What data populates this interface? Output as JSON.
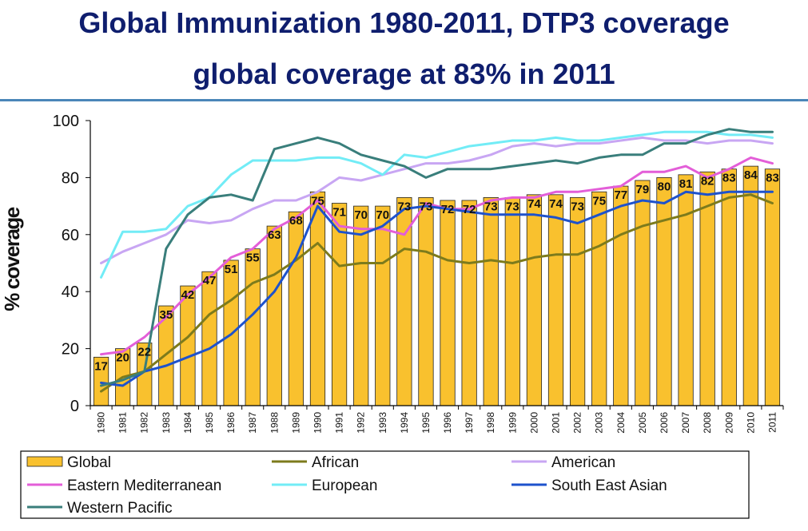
{
  "title": "Global Immunization 1980-2011, DTP3 coverage",
  "subtitle": "global coverage at 83% in 2011",
  "chart_data": {
    "type": "bar",
    "ylabel": "% coverage",
    "xlabel": "",
    "ylim": [
      0,
      100
    ],
    "yticks": [
      0,
      20,
      40,
      60,
      80,
      100
    ],
    "grid": false,
    "legend_position": "bottom",
    "categories": [
      "1980",
      "1981",
      "1982",
      "1983",
      "1984",
      "1985",
      "1986",
      "1987",
      "1988",
      "1989",
      "1990",
      "1991",
      "1992",
      "1993",
      "1994",
      "1995",
      "1996",
      "1997",
      "1998",
      "1999",
      "2000",
      "2001",
      "2002",
      "2003",
      "2004",
      "2005",
      "2006",
      "2007",
      "2008",
      "2009",
      "2010",
      "2011"
    ],
    "bar_series": {
      "name": "Global",
      "color": "#f9c12e",
      "values": [
        17,
        20,
        22,
        35,
        42,
        47,
        51,
        55,
        63,
        68,
        75,
        71,
        70,
        70,
        73,
        73,
        72,
        72,
        73,
        73,
        74,
        74,
        73,
        75,
        77,
        79,
        80,
        81,
        82,
        83,
        84,
        83
      ]
    },
    "series": [
      {
        "name": "African",
        "color": "#7d7b1c",
        "values": [
          5,
          10,
          12,
          18,
          24,
          32,
          37,
          43,
          46,
          51,
          57,
          49,
          50,
          50,
          55,
          54,
          51,
          50,
          51,
          50,
          52,
          53,
          53,
          56,
          60,
          63,
          65,
          67,
          70,
          73,
          74,
          71
        ]
      },
      {
        "name": "American",
        "color": "#c8a6f3",
        "values": [
          50,
          54,
          57,
          60,
          65,
          64,
          65,
          69,
          72,
          72,
          75,
          80,
          79,
          81,
          83,
          85,
          85,
          86,
          88,
          91,
          92,
          91,
          92,
          92,
          93,
          94,
          93,
          93,
          92,
          93,
          93,
          92
        ]
      },
      {
        "name": "Eastern Mediterranean",
        "color": "#e35ed8",
        "values": [
          18,
          19,
          24,
          31,
          39,
          45,
          52,
          55,
          62,
          66,
          72,
          63,
          62,
          62,
          60,
          71,
          69,
          69,
          72,
          73,
          73,
          75,
          75,
          76,
          77,
          82,
          82,
          84,
          80,
          83,
          87,
          85
        ]
      },
      {
        "name": "European",
        "color": "#72ecf6",
        "values": [
          45,
          61,
          61,
          62,
          70,
          73,
          81,
          86,
          86,
          86,
          87,
          87,
          85,
          81,
          88,
          87,
          89,
          91,
          92,
          93,
          93,
          94,
          93,
          93,
          94,
          95,
          96,
          96,
          96,
          95,
          95,
          94
        ]
      },
      {
        "name": "South East Asian",
        "color": "#1e52cc",
        "values": [
          8,
          7,
          12,
          14,
          17,
          20,
          25,
          32,
          40,
          52,
          70,
          61,
          60,
          63,
          69,
          70,
          69,
          68,
          67,
          67,
          67,
          66,
          64,
          67,
          70,
          72,
          71,
          75,
          74,
          75,
          75,
          75
        ]
      },
      {
        "name": "Western Pacific",
        "color": "#397e7b",
        "values": [
          7,
          9,
          12,
          55,
          67,
          73,
          74,
          72,
          90,
          92,
          94,
          92,
          88,
          86,
          84,
          80,
          83,
          83,
          83,
          84,
          85,
          86,
          85,
          87,
          88,
          88,
          92,
          92,
          95,
          97,
          96,
          96
        ]
      }
    ],
    "legend": [
      "Global",
      "African",
      "American",
      "Eastern Mediterranean",
      "European",
      "South East Asian",
      "Western Pacific"
    ]
  }
}
